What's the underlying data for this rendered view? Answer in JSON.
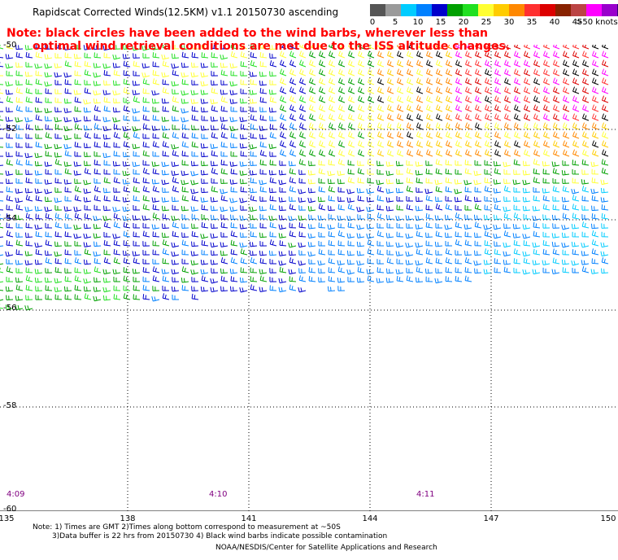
{
  "header": {
    "title": "Rapidscat Corrected Winds(12.5KM) v1.1 20150730 ascending"
  },
  "note": {
    "line1": "Note: black circles have been added to the wind barbs, wherever less than",
    "line2": "optimal wind retrieval conditions are met due to the ISS altitude changes."
  },
  "legend": {
    "colors": [
      "#555555",
      "#9a9a9a",
      "#00ccff",
      "#0080ff",
      "#0000cc",
      "#00a000",
      "#20e020",
      "#ffff33",
      "#ffcc00",
      "#ff8800",
      "#ff3030",
      "#dd0000",
      "#882200",
      "#bb4444",
      "#ff00ff",
      "#9900cc",
      "#330077"
    ],
    "tick_labels": [
      "0",
      "5",
      "10",
      "15",
      "20",
      "25",
      "30",
      "35",
      "40",
      "45"
    ],
    "unit_label": ">50 knots"
  },
  "axes": {
    "lat_labels": [
      "-50",
      "-52",
      "-54",
      "-56",
      "-58",
      "-60"
    ],
    "lon_labels": [
      "135",
      "138",
      "141",
      "144",
      "147",
      "150"
    ],
    "time_labels": [
      "4:09",
      "4:10",
      "4:11"
    ]
  },
  "footer": {
    "footnote_line1": "Note: 1) Times are GMT 2)Times along bottom correspond to measurement at ~50S",
    "footnote_line2": "3)Data buffer is 22 hrs from 20150730 4) Black wind barbs indicate possible contamination",
    "credit": "NOAA/NESDIS/Center for Satellite Applications and Research"
  }
}
